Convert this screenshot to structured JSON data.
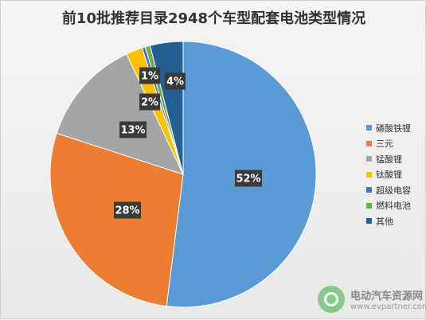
{
  "watermark": {
    "name": "电动汽车资源网",
    "url": "www.evpartner.com"
  },
  "chart_data": {
    "type": "pie",
    "title": "前10批推荐目录2948个车型配套电池类型情况",
    "legend_position": "right",
    "slices": [
      {
        "label": "磷酸铁锂",
        "value": 52,
        "data_label": "52%",
        "color": "#5b9bd5"
      },
      {
        "label": "三元",
        "value": 28,
        "data_label": "28%",
        "color": "#ed7d31"
      },
      {
        "label": "锰酸锂",
        "value": 13,
        "data_label": "13%",
        "color": "#a5a5a5"
      },
      {
        "label": "钛酸锂",
        "value": 2,
        "data_label": "2%",
        "color": "#ffc000"
      },
      {
        "label": "超级电容",
        "value": 0.4,
        "data_label": "",
        "color": "#4472c4"
      },
      {
        "label": "燃料电池",
        "value": 0.6,
        "data_label": "1%",
        "color": "#70ad47"
      },
      {
        "label": "其他",
        "value": 4,
        "data_label": "4%",
        "color": "#255e91"
      }
    ]
  }
}
